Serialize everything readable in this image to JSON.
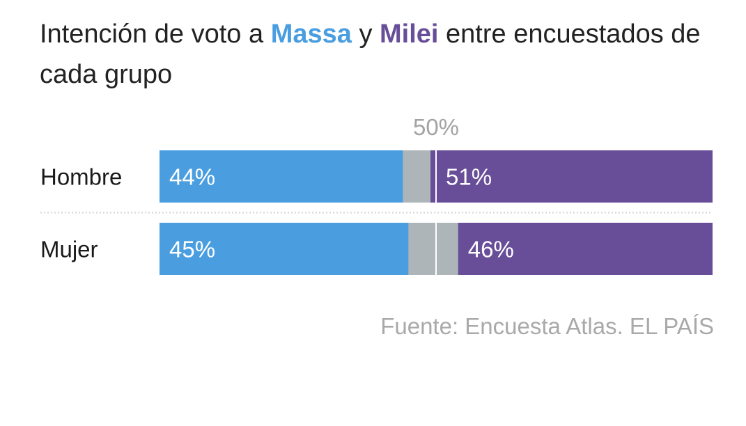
{
  "title": {
    "part1": "Intención de voto a ",
    "massa": "Massa",
    "part2": " y ",
    "milei": "Milei",
    "part3": " entre encuestados de cada grupo"
  },
  "source": "Fuente: Encuesta Atlas. EL PAÍS",
  "colors": {
    "massa": "#4a9ee0",
    "milei": "#684e98",
    "other": "#adb5b8",
    "midline": "#ffffff",
    "separator": "#d3d3d3",
    "reference_label": "#a3a3a3"
  },
  "chart_data": {
    "type": "bar",
    "orientation": "horizontal",
    "stacked": true,
    "xlim": [
      0,
      100
    ],
    "reference_line": {
      "value": 50,
      "label": "50%"
    },
    "categories": [
      "Hombre",
      "Mujer"
    ],
    "series": [
      {
        "name": "Massa",
        "values": [
          44,
          45
        ],
        "labels": [
          "44%",
          "45%"
        ],
        "align": "left"
      },
      {
        "name": "Milei",
        "values": [
          51,
          46
        ],
        "labels": [
          "51%",
          "46%"
        ],
        "align": "right"
      }
    ]
  }
}
